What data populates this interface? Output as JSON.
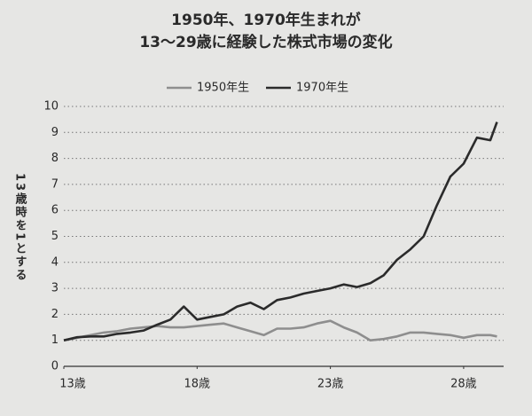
{
  "chart_data": {
    "type": "line",
    "title": "1950年、1970年生まれが",
    "subtitle": "13～29歳に経験した株式市場の変化",
    "y_label": "13歳時を1とする",
    "x": [
      13,
      13.5,
      14,
      14.5,
      15,
      15.5,
      16,
      16.5,
      17,
      17.5,
      18,
      18.5,
      19,
      19.5,
      20,
      20.5,
      21,
      21.5,
      22,
      22.5,
      23,
      23.5,
      24,
      24.5,
      25,
      25.5,
      26,
      26.5,
      27,
      27.5,
      28,
      28.5,
      29,
      29.25
    ],
    "series": [
      {
        "name": "1950年生",
        "color": "#8e8e8e",
        "values": [
          1.0,
          1.1,
          1.2,
          1.3,
          1.35,
          1.45,
          1.5,
          1.55,
          1.5,
          1.5,
          1.55,
          1.6,
          1.65,
          1.5,
          1.35,
          1.2,
          1.45,
          1.45,
          1.5,
          1.65,
          1.75,
          1.5,
          1.3,
          1.0,
          1.05,
          1.15,
          1.3,
          1.3,
          1.25,
          1.2,
          1.1,
          1.2,
          1.2,
          1.15
        ]
      },
      {
        "name": "1970年生",
        "color": "#2b2b2b",
        "values": [
          1.0,
          1.12,
          1.15,
          1.15,
          1.25,
          1.3,
          1.38,
          1.6,
          1.8,
          2.3,
          1.8,
          1.9,
          2.0,
          2.3,
          2.45,
          2.2,
          2.55,
          2.65,
          2.8,
          2.9,
          3.0,
          3.15,
          3.05,
          3.2,
          3.5,
          4.1,
          4.5,
          5.0,
          6.2,
          7.3,
          7.8,
          8.8,
          8.7,
          9.4
        ]
      }
    ],
    "xlim": [
      13,
      29.5
    ],
    "xticks": [
      {
        "value": 13,
        "label": "13歳"
      },
      {
        "value": 18,
        "label": "18歳"
      },
      {
        "value": 23,
        "label": "23歳"
      },
      {
        "value": 28,
        "label": "28歳"
      }
    ],
    "ylim": [
      0,
      10
    ],
    "yticks": [
      0,
      1,
      2,
      3,
      4,
      5,
      6,
      7,
      8,
      9,
      10
    ],
    "grid": true
  }
}
